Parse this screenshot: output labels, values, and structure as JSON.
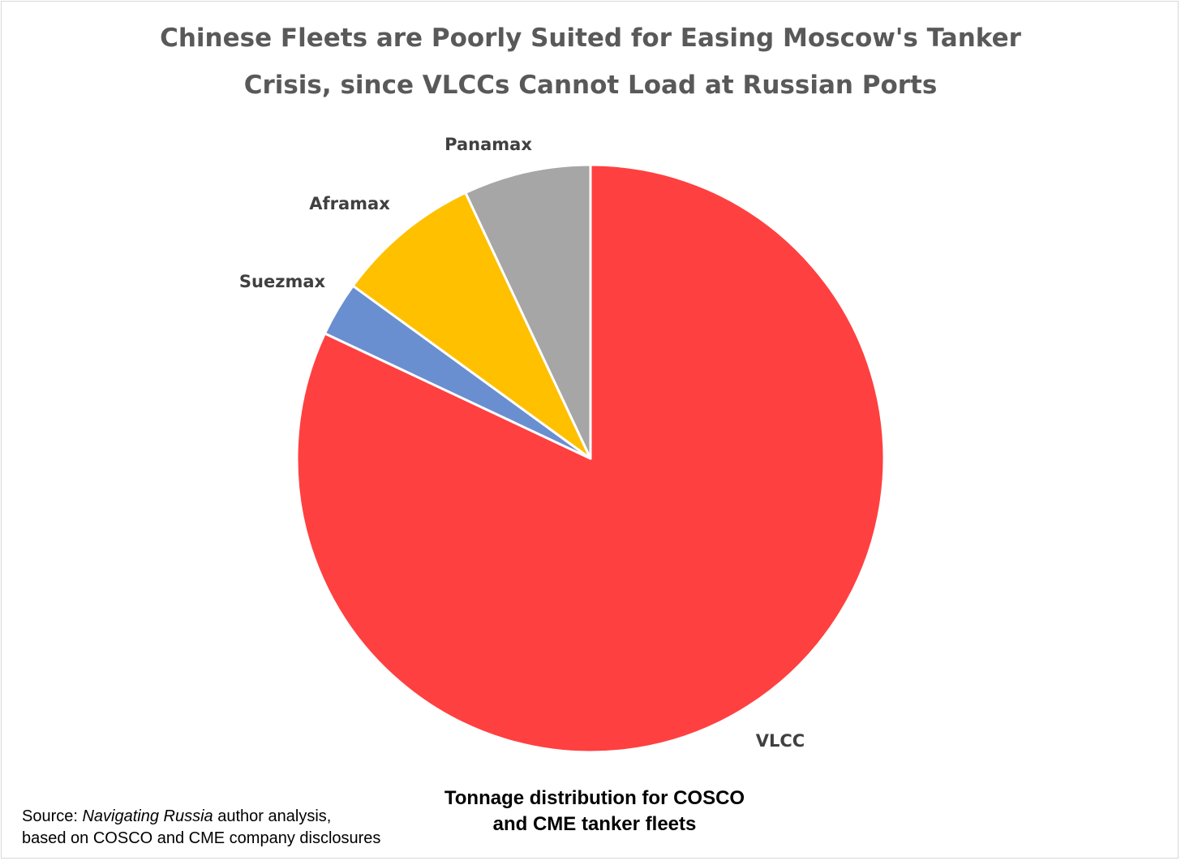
{
  "title": {
    "line1": "Chinese Fleets are Poorly Suited for Easing Moscow's Tanker",
    "line2": "Crisis, since VLCCs Cannot Load at Russian Ports"
  },
  "subtitle": {
    "line1": "Tonnage distribution for COSCO",
    "line2": "and CME tanker fleets"
  },
  "source": {
    "prefix": "Source: ",
    "italic": "Navigating Russia",
    "suffix": " author analysis,",
    "line2": "based on COSCO and CME company disclosures"
  },
  "chart_data": {
    "type": "pie",
    "categories": [
      "VLCC",
      "Suezmax",
      "Aframax",
      "Panamax"
    ],
    "values": [
      82.0,
      3.0,
      8.0,
      7.0
    ],
    "unit": "share of tonnage (%)",
    "colors": [
      "#ff4040",
      "#6a8fd0",
      "#ffc000",
      "#a6a6a6"
    ],
    "start": "12 o'clock",
    "direction": "clockwise",
    "legend": "none",
    "labels": "category names outside slices"
  }
}
